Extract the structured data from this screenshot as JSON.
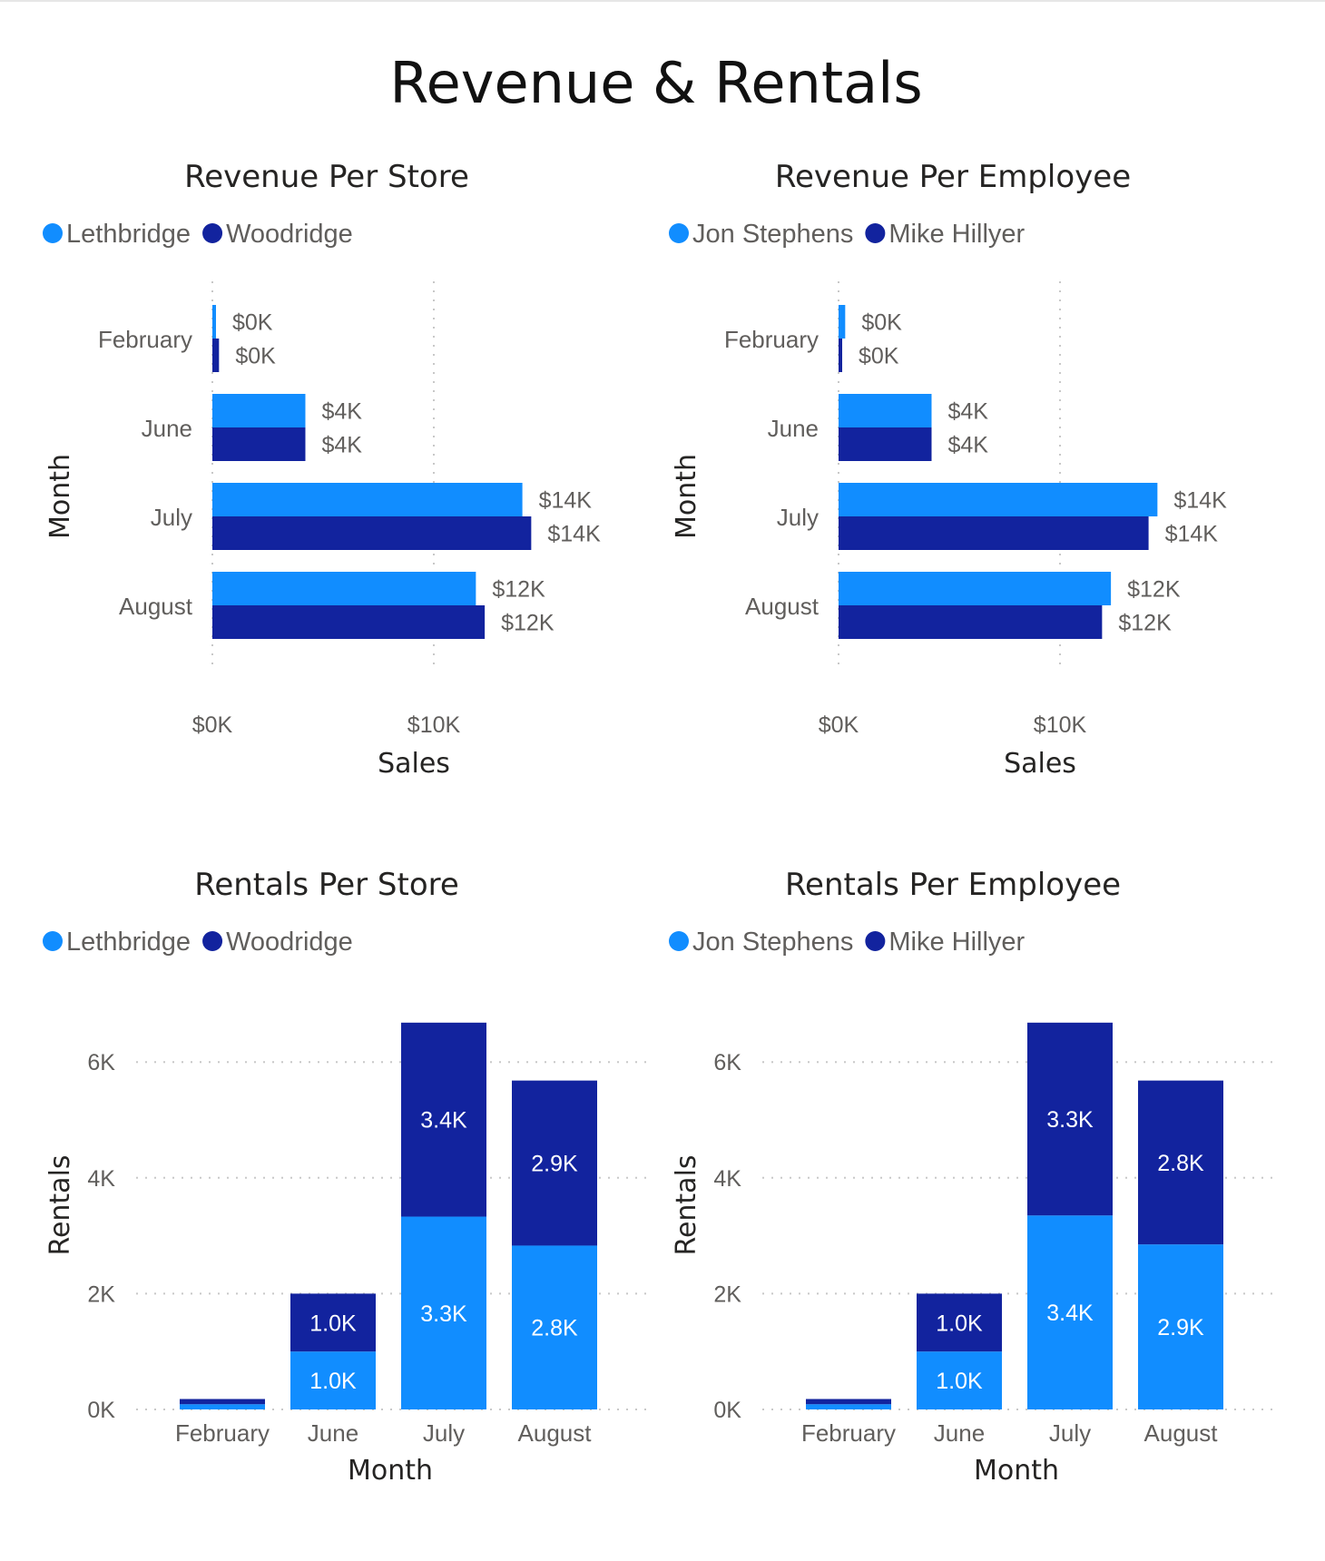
{
  "report": {
    "title": "Revenue & Rentals"
  },
  "colors": {
    "light_blue": "#118DFF",
    "dark_blue": "#12239E"
  },
  "chart_data": [
    {
      "id": "revenue-per-store",
      "type": "bar",
      "orientation": "horizontal",
      "title": "Revenue Per Store",
      "xlabel": "Sales",
      "ylabel": "Month",
      "categories": [
        "February",
        "June",
        "July",
        "August"
      ],
      "series": [
        {
          "name": "Lethbridge",
          "color": "#118DFF",
          "values": [
            0.1,
            4.2,
            14.0,
            11.9
          ],
          "labels": [
            "$0K",
            "$4K",
            "$14K",
            "$12K"
          ]
        },
        {
          "name": "Woodridge",
          "color": "#12239E",
          "values": [
            0.3,
            4.2,
            14.4,
            12.3
          ],
          "labels": [
            "$0K",
            "$4K",
            "$14K",
            "$12K"
          ]
        }
      ],
      "xlim": [
        0,
        18.5
      ],
      "xticks": [
        0,
        10
      ],
      "xtick_labels": [
        "$0K",
        "$10K"
      ],
      "grid": true,
      "legend": "top-left"
    },
    {
      "id": "revenue-per-employee",
      "type": "bar",
      "orientation": "horizontal",
      "title": "Revenue Per Employee",
      "xlabel": "Sales",
      "ylabel": "Month",
      "categories": [
        "February",
        "June",
        "July",
        "August"
      ],
      "series": [
        {
          "name": "Jon Stephens",
          "color": "#118DFF",
          "values": [
            0.3,
            4.2,
            14.4,
            12.3
          ],
          "labels": [
            "$0K",
            "$4K",
            "$14K",
            "$12K"
          ]
        },
        {
          "name": "Mike Hillyer",
          "color": "#12239E",
          "values": [
            0.1,
            4.2,
            14.0,
            11.9
          ],
          "labels": [
            "$0K",
            "$4K",
            "$14K",
            "$12K"
          ]
        }
      ],
      "xlim": [
        0,
        18.5
      ],
      "xticks": [
        0,
        10
      ],
      "xtick_labels": [
        "$0K",
        "$10K"
      ],
      "grid": true,
      "legend": "top-left"
    },
    {
      "id": "rentals-per-store",
      "type": "bar",
      "orientation": "vertical",
      "stacked": true,
      "title": "Rentals Per Store",
      "xlabel": "Month",
      "ylabel": "Rentals",
      "categories": [
        "February",
        "June",
        "July",
        "August"
      ],
      "series": [
        {
          "name": "Lethbridge",
          "color": "#118DFF",
          "values": [
            90,
            1000,
            3330,
            2830
          ],
          "labels": [
            "",
            "1.0K",
            "3.3K",
            "2.8K"
          ]
        },
        {
          "name": "Woodridge",
          "color": "#12239E",
          "values": [
            90,
            1000,
            3350,
            2850
          ],
          "labels": [
            "",
            "1.0K",
            "3.4K",
            "2.9K"
          ]
        }
      ],
      "ylim": [
        0,
        6800
      ],
      "yticks": [
        0,
        2000,
        4000,
        6000
      ],
      "ytick_labels": [
        "0K",
        "2K",
        "4K",
        "6K"
      ],
      "grid": true,
      "legend": "top-left"
    },
    {
      "id": "rentals-per-employee",
      "type": "bar",
      "orientation": "vertical",
      "stacked": true,
      "title": "Rentals Per Employee",
      "xlabel": "Month",
      "ylabel": "Rentals",
      "categories": [
        "February",
        "June",
        "July",
        "August"
      ],
      "series": [
        {
          "name": "Jon Stephens",
          "color": "#118DFF",
          "values": [
            90,
            1000,
            3350,
            2850
          ],
          "labels": [
            "",
            "1.0K",
            "3.4K",
            "2.9K"
          ]
        },
        {
          "name": "Mike Hillyer",
          "color": "#12239E",
          "values": [
            90,
            1000,
            3330,
            2830
          ],
          "labels": [
            "",
            "1.0K",
            "3.3K",
            "2.8K"
          ]
        }
      ],
      "ylim": [
        0,
        6800
      ],
      "yticks": [
        0,
        2000,
        4000,
        6000
      ],
      "ytick_labels": [
        "0K",
        "2K",
        "4K",
        "6K"
      ],
      "grid": true,
      "legend": "top-left"
    }
  ]
}
